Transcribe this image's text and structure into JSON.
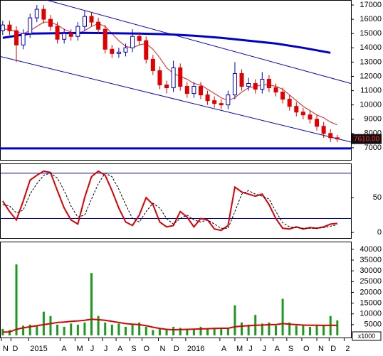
{
  "chart_data": [
    {
      "type": "candlestick",
      "x": [
        0,
        0.5,
        1,
        1.5,
        2,
        2.5,
        3,
        3.5,
        4,
        4.5,
        5,
        5.5,
        6,
        6.5,
        7,
        7.5,
        8,
        8.5,
        9,
        9.5,
        10,
        10.5,
        11,
        11.5,
        12,
        12.5,
        13,
        13.5,
        14,
        14.5,
        15,
        15.5,
        16,
        16.5,
        17,
        17.5,
        18,
        18.5,
        19,
        19.5,
        20,
        20.5,
        21,
        21.5,
        22,
        22.5,
        23,
        23.5,
        24,
        24.5
      ],
      "open": [
        15200,
        15600,
        15200,
        14200,
        15000,
        16100,
        16700,
        16000,
        15500,
        14600,
        15000,
        14800,
        15500,
        16200,
        15800,
        15300,
        13900,
        13600,
        13700,
        14000,
        14800,
        14500,
        13200,
        12400,
        11400,
        11200,
        12600,
        11300,
        10800,
        11300,
        10700,
        10300,
        10100,
        10000,
        10700,
        12200,
        11300,
        11500,
        11100,
        11800,
        11200,
        10900,
        10400,
        9900,
        9500,
        9300,
        9000,
        8500,
        8000,
        7700
      ],
      "high": [
        15900,
        15900,
        15500,
        15300,
        16400,
        17000,
        17000,
        16300,
        15800,
        15300,
        15300,
        15800,
        16600,
        16500,
        16100,
        15600,
        14200,
        14000,
        14300,
        15300,
        15100,
        14800,
        13500,
        12700,
        11700,
        13100,
        12900,
        11600,
        11600,
        11600,
        11000,
        10600,
        10400,
        11000,
        13000,
        12500,
        11900,
        11800,
        12300,
        12100,
        11500,
        11200,
        10700,
        10200,
        9800,
        9600,
        9300,
        8800,
        8300,
        7900
      ],
      "low": [
        14900,
        14900,
        13000,
        13900,
        14700,
        15800,
        15700,
        15200,
        14300,
        14300,
        14500,
        14500,
        15200,
        15500,
        15000,
        13600,
        13300,
        13300,
        13400,
        13700,
        14200,
        12900,
        12100,
        11100,
        10800,
        10900,
        11000,
        10500,
        10500,
        10400,
        10000,
        9800,
        9700,
        9700,
        10400,
        11000,
        11000,
        10800,
        10800,
        10900,
        10600,
        10100,
        9600,
        9200,
        9000,
        8700,
        8200,
        7700,
        7400,
        7400
      ],
      "close": [
        15600,
        15200,
        14200,
        15000,
        16100,
        16700,
        16000,
        15500,
        14600,
        15000,
        14800,
        15500,
        16200,
        15800,
        15300,
        13900,
        13600,
        13700,
        14000,
        14800,
        14500,
        13200,
        12400,
        11400,
        11200,
        12600,
        11300,
        10800,
        11300,
        10700,
        10300,
        10100,
        10000,
        10700,
        12200,
        11300,
        11500,
        11100,
        11800,
        11200,
        10900,
        10400,
        9900,
        9500,
        9300,
        9000,
        8500,
        8000,
        7700,
        7610
      ],
      "up_color": "#0000cc",
      "down_color": "#e00000",
      "xlim": [
        -0.2,
        25.5
      ],
      "ylim": [
        6150,
        17350
      ],
      "yticks": [
        7000,
        8000,
        9000,
        10000,
        11000,
        12000,
        13000,
        14000,
        15000,
        16000,
        17000
      ],
      "lines": [
        {
          "color": "#e02020",
          "width": 1,
          "values": [
            15300,
            15300,
            15100,
            15000,
            15200,
            15500,
            15800,
            15800,
            15600,
            15300,
            15100,
            15000,
            15200,
            15500,
            15700,
            15500,
            15000,
            14500,
            14100,
            14000,
            14200,
            14300,
            13900,
            13300,
            12600,
            12200,
            12000,
            11800,
            11500,
            11400,
            11100,
            10800,
            10500,
            10300,
            10500,
            10900,
            11200,
            11300,
            11400,
            11400,
            11300,
            11100,
            10700,
            10300,
            9900,
            9600,
            9300,
            9100,
            8800,
            8600
          ]
        },
        {
          "color": "#0000cc",
          "width": 3,
          "x": [
            0,
            2,
            6,
            10,
            12,
            14,
            16,
            18,
            20,
            22,
            24
          ],
          "values": [
            14700,
            15000,
            15050,
            15000,
            14950,
            14850,
            14700,
            14500,
            14300,
            14000,
            13650
          ]
        }
      ],
      "trendlines": [
        {
          "color": "#0000cc",
          "x": [
            3.2,
            25.5
          ],
          "values": [
            17350,
            11500
          ]
        },
        {
          "color": "#0000cc",
          "x": [
            -0.2,
            25.5
          ],
          "values": [
            13400,
            7400
          ]
        }
      ],
      "support": {
        "color": "#0000cc",
        "value": 6950
      },
      "last_price": {
        "value": 7610,
        "label": "7610.00"
      }
    },
    {
      "type": "line",
      "xlim": [
        -0.2,
        25.5
      ],
      "ylim": [
        -8,
        99
      ],
      "yticks": [
        0,
        50
      ],
      "levels": [
        85,
        20
      ],
      "lines": [
        {
          "color": "#dd0000",
          "width": 2,
          "values": [
            45,
            30,
            18,
            45,
            75,
            82,
            88,
            86,
            60,
            35,
            18,
            12,
            50,
            80,
            88,
            82,
            60,
            35,
            15,
            10,
            25,
            50,
            40,
            15,
            8,
            10,
            30,
            22,
            8,
            20,
            18,
            5,
            3,
            10,
            65,
            58,
            55,
            52,
            55,
            40,
            20,
            6,
            5,
            8,
            5,
            7,
            6,
            8,
            12,
            13
          ]
        },
        {
          "color": "#000000",
          "width": 1,
          "dash": true,
          "values": [
            40,
            38,
            28,
            32,
            55,
            70,
            82,
            85,
            78,
            60,
            38,
            22,
            25,
            48,
            70,
            85,
            80,
            62,
            40,
            20,
            15,
            30,
            42,
            35,
            20,
            12,
            20,
            25,
            18,
            15,
            18,
            12,
            6,
            6,
            30,
            55,
            60,
            55,
            52,
            48,
            30,
            14,
            8,
            7,
            6,
            6,
            6,
            7,
            9,
            11
          ]
        }
      ]
    },
    {
      "type": "bar",
      "color": "#1a9a1a",
      "values": [
        3000,
        2500,
        33000,
        4500,
        5000,
        4500,
        11000,
        9000,
        5000,
        4000,
        5500,
        5000,
        6000,
        29000,
        9000,
        6000,
        5000,
        5500,
        4000,
        5000,
        6000,
        4000,
        2500,
        3000,
        2500,
        4000,
        3500,
        2500,
        3000,
        4000,
        3000,
        3500,
        3000,
        3500,
        14000,
        6000,
        5000,
        9500,
        5500,
        6000,
        4500,
        17000,
        6000,
        4500,
        5000,
        4000,
        4500,
        5000,
        9000,
        7000
      ],
      "lines": [
        {
          "color": "#dd0000",
          "width": 2,
          "values": [
            1500,
            1600,
            2800,
            3500,
            4000,
            4500,
            5000,
            5500,
            6000,
            6200,
            6500,
            6700,
            7000,
            7500,
            7300,
            7000,
            6500,
            6000,
            5500,
            5200,
            5000,
            4500,
            3800,
            3200,
            2800,
            2600,
            2700,
            2800,
            2900,
            3000,
            3100,
            3200,
            3300,
            3300,
            4000,
            4300,
            4500,
            4700,
            4800,
            5000,
            5000,
            5500,
            5200,
            5000,
            4800,
            4700,
            4700,
            4600,
            4700,
            4600
          ]
        }
      ],
      "unit_label": "x1000",
      "xlim": [
        -0.2,
        25.5
      ],
      "ylim": [
        -1000,
        43600
      ],
      "yticks": [
        5000,
        10000,
        15000,
        20000,
        25000,
        30000,
        35000,
        40000
      ],
      "xticks": [
        {
          "value": -0.1,
          "label": "N"
        },
        {
          "value": 0.6,
          "label": "D"
        },
        {
          "value": 1.9,
          "label": "2015"
        },
        {
          "value": 4.2,
          "label": "A"
        },
        {
          "value": 5.3,
          "label": "M"
        },
        {
          "value": 6.3,
          "label": "J"
        },
        {
          "value": 7.3,
          "label": "J"
        },
        {
          "value": 8.3,
          "label": "A"
        },
        {
          "value": 9.3,
          "label": "S"
        },
        {
          "value": 10.2,
          "label": "O"
        },
        {
          "value": 11.4,
          "label": "N"
        },
        {
          "value": 12.4,
          "label": "D"
        },
        {
          "value": 13.4,
          "label": "2016"
        },
        {
          "value": 15.9,
          "label": "A"
        },
        {
          "value": 17.0,
          "label": "M"
        },
        {
          "value": 17.9,
          "label": "J"
        },
        {
          "value": 18.9,
          "label": "J"
        },
        {
          "value": 19.8,
          "label": "A"
        },
        {
          "value": 20.8,
          "label": "S"
        },
        {
          "value": 21.9,
          "label": "O"
        },
        {
          "value": 23.0,
          "label": "N"
        },
        {
          "value": 23.9,
          "label": "D"
        },
        {
          "value": 25.0,
          "label": "2"
        }
      ]
    }
  ]
}
